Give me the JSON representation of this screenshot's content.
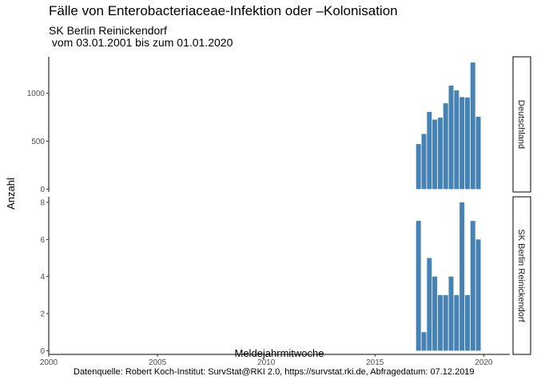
{
  "title": "Fälle von Enterobacteriaceae-Infektion oder –Kolonisation",
  "subtitle": "SK Berlin Reinickendorf",
  "subtitle2": " vom 03.01.2001 bis zum 01.01.2020",
  "caption": "Datenquelle: Robert Koch-Institut: SurvStat@RKI 2.0, https://survstat.rki.de, Abfragedatum: 07.12.2019",
  "chart_data": {
    "type": "bar",
    "xlabel": "Meldejahrmitwoche",
    "ylabel": "Anzahl",
    "xlim": [
      2000,
      2021.2
    ],
    "x_ticks": [
      2000,
      2005,
      2010,
      2015,
      2020
    ],
    "bar_color": "#4682b4",
    "bar_width": 0.22,
    "x": [
      2017.0,
      2017.25,
      2017.5,
      2017.75,
      2018.0,
      2018.25,
      2018.5,
      2018.75,
      2019.0,
      2019.25,
      2019.5,
      2019.75
    ],
    "panels": [
      {
        "strip": "Deutschland",
        "ylim": [
          -30,
          1380
        ],
        "y_ticks": [
          0,
          500,
          1000
        ],
        "values": [
          470,
          575,
          805,
          725,
          745,
          895,
          1080,
          1030,
          960,
          955,
          1320,
          755
        ]
      },
      {
        "strip": "SK Berlin Reinickendorf",
        "ylim": [
          -0.2,
          8.3
        ],
        "y_ticks": [
          0,
          2,
          4,
          6,
          8
        ],
        "values": [
          7,
          1,
          5,
          4,
          3,
          3,
          4,
          3,
          8,
          3,
          7,
          6
        ]
      }
    ]
  }
}
